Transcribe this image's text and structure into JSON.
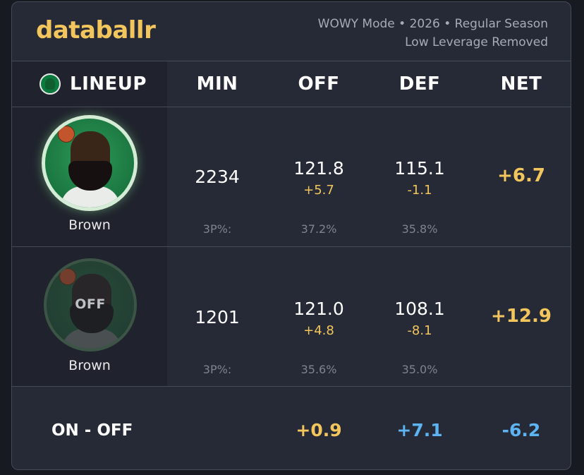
{
  "brand": "databallr",
  "meta": {
    "line1": "WOWY Mode • 2026 • Regular Season",
    "line2": "Low Leverage Removed"
  },
  "colors": {
    "accent": "#f2c65c",
    "positive_blue": "#5cb4f2"
  },
  "logo_icon": "celtics-logo-icon",
  "columns": {
    "lineup": "LINEUP",
    "min": "MIN",
    "off": "OFF",
    "def": "DEF",
    "net": "NET"
  },
  "rows": [
    {
      "state": "on",
      "player": "Brown",
      "min": "2234",
      "off": "121.8",
      "off_diff": "+5.7",
      "def": "115.1",
      "def_diff": "-1.1",
      "net": "+6.7",
      "three_label": "3P%:",
      "off_3p": "37.2%",
      "def_3p": "35.8%"
    },
    {
      "state": "off",
      "overlay": "OFF",
      "player": "Brown",
      "min": "1201",
      "off": "121.0",
      "off_diff": "+4.8",
      "def": "108.1",
      "def_diff": "-8.1",
      "net": "+12.9",
      "three_label": "3P%:",
      "off_3p": "35.6%",
      "def_3p": "35.0%"
    }
  ],
  "summary": {
    "label": "ON - OFF",
    "off": "+0.9",
    "def": "+7.1",
    "net": "-6.2"
  }
}
